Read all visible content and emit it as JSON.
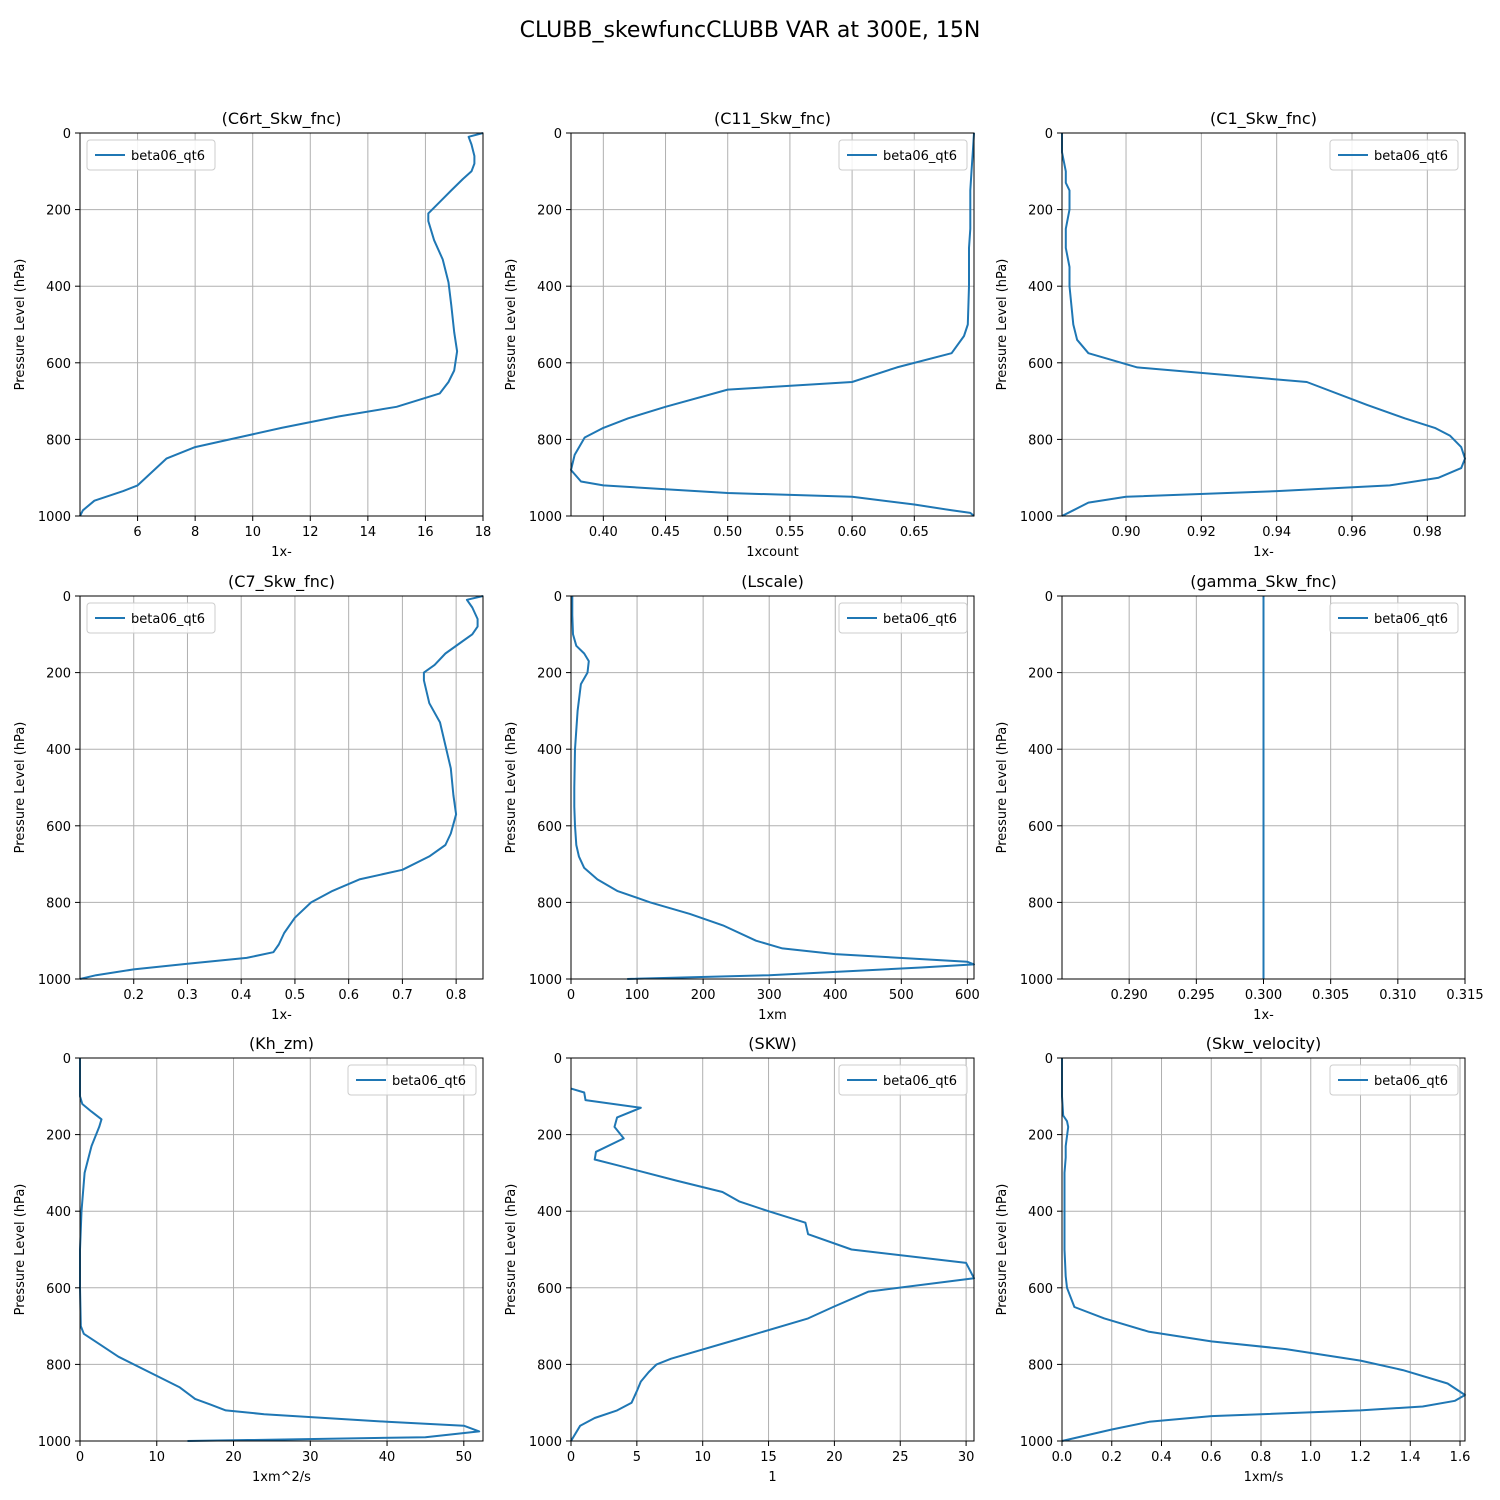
{
  "figure": {
    "title": "CLUBB_skewfuncCLUBB VAR at 300E, 15N",
    "ylabel": "Pressure Level (hPa)",
    "line_color": "#1f77b4"
  },
  "chart_data": [
    {
      "type": "line",
      "title": "(C6rt_Skw_fnc)",
      "xlabel": "1x-",
      "ylabel": "Pressure Level (hPa)",
      "xlim": [
        4,
        18
      ],
      "ylim": [
        1000,
        0
      ],
      "grid": true,
      "legend_loc": "upper-left",
      "xticks": [
        6,
        8,
        10,
        12,
        14,
        16,
        18
      ],
      "xtick_labels": [
        "6",
        "8",
        "10",
        "12",
        "14",
        "16",
        "18"
      ],
      "yticks": [
        0,
        200,
        400,
        600,
        800,
        1000
      ],
      "ytick_labels": [
        "0",
        "200",
        "400",
        "600",
        "800",
        "1000"
      ],
      "series": [
        {
          "name": "beta06_qt6",
          "x": [
            18.0,
            17.5,
            17.6,
            17.7,
            17.7,
            17.6,
            17.3,
            16.9,
            16.5,
            16.1,
            16.1,
            16.3,
            16.6,
            16.8,
            16.9,
            17.0,
            17.1,
            17.0,
            16.8,
            16.5,
            15.0,
            13.0,
            11.0,
            9.5,
            8.0,
            7.0,
            6.5,
            6.0,
            5.5,
            4.5,
            4.1,
            4.0
          ],
          "y": [
            0,
            10,
            30,
            60,
            80,
            100,
            120,
            150,
            180,
            210,
            230,
            280,
            330,
            390,
            450,
            520,
            570,
            620,
            650,
            680,
            715,
            740,
            770,
            795,
            820,
            850,
            885,
            920,
            935,
            960,
            985,
            1000
          ]
        }
      ]
    },
    {
      "type": "line",
      "title": "(C11_Skw_fnc)",
      "xlabel": "1xcount",
      "ylabel": "Pressure Level (hPa)",
      "xlim": [
        0.374,
        0.698
      ],
      "ylim": [
        1000,
        0
      ],
      "grid": true,
      "legend_loc": "upper-right",
      "xticks": [
        0.4,
        0.45,
        0.5,
        0.55,
        0.6,
        0.65
      ],
      "xtick_labels": [
        "0.40",
        "0.45",
        "0.50",
        "0.55",
        "0.60",
        "0.65"
      ],
      "yticks": [
        0,
        200,
        400,
        600,
        800,
        1000
      ],
      "ytick_labels": [
        "0",
        "200",
        "400",
        "600",
        "800",
        "1000"
      ],
      "series": [
        {
          "name": "beta06_qt6",
          "x": [
            0.698,
            0.697,
            0.696,
            0.695,
            0.695,
            0.695,
            0.694,
            0.694,
            0.693,
            0.69,
            0.68,
            0.636,
            0.6,
            0.5,
            0.45,
            0.42,
            0.4,
            0.385,
            0.377,
            0.374,
            0.382,
            0.4,
            0.45,
            0.5,
            0.6,
            0.65,
            0.68,
            0.695,
            0.698
          ],
          "y": [
            0,
            50,
            100,
            150,
            200,
            250,
            300,
            400,
            500,
            530,
            575,
            612,
            650,
            670,
            715,
            745,
            770,
            795,
            840,
            880,
            910,
            920,
            930,
            940,
            950,
            970,
            985,
            992,
            1000
          ]
        }
      ]
    },
    {
      "type": "line",
      "title": "(C1_Skw_fnc)",
      "xlabel": "1x-",
      "ylabel": "Pressure Level (hPa)",
      "xlim": [
        0.883,
        0.99
      ],
      "ylim": [
        1000,
        0
      ],
      "grid": true,
      "legend_loc": "upper-right",
      "xticks": [
        0.9,
        0.92,
        0.94,
        0.96,
        0.98
      ],
      "xtick_labels": [
        "0.90",
        "0.92",
        "0.94",
        "0.96",
        "0.98"
      ],
      "yticks": [
        0,
        200,
        400,
        600,
        800,
        1000
      ],
      "ytick_labels": [
        "0",
        "200",
        "400",
        "600",
        "800",
        "1000"
      ],
      "series": [
        {
          "name": "beta06_qt6",
          "x": [
            0.883,
            0.883,
            0.884,
            0.884,
            0.885,
            0.885,
            0.884,
            0.884,
            0.885,
            0.885,
            0.886,
            0.887,
            0.89,
            0.903,
            0.948,
            0.964,
            0.974,
            0.982,
            0.986,
            0.989,
            0.99,
            0.989,
            0.983,
            0.97,
            0.94,
            0.9,
            0.89,
            0.886,
            0.883
          ],
          "y": [
            0,
            50,
            100,
            130,
            150,
            200,
            250,
            300,
            350,
            400,
            500,
            540,
            575,
            612,
            650,
            710,
            745,
            770,
            790,
            820,
            850,
            875,
            900,
            920,
            935,
            950,
            965,
            985,
            1000
          ]
        }
      ]
    },
    {
      "type": "line",
      "title": "(C7_Skw_fnc)",
      "xlabel": "1x-",
      "ylabel": "Pressure Level (hPa)",
      "xlim": [
        0.1,
        0.85
      ],
      "ylim": [
        1000,
        0
      ],
      "grid": true,
      "legend_loc": "upper-left",
      "xticks": [
        0.2,
        0.3,
        0.4,
        0.5,
        0.6,
        0.7,
        0.8
      ],
      "xtick_labels": [
        "0.2",
        "0.3",
        "0.4",
        "0.5",
        "0.6",
        "0.7",
        "0.8"
      ],
      "yticks": [
        0,
        200,
        400,
        600,
        800,
        1000
      ],
      "ytick_labels": [
        "0",
        "200",
        "400",
        "600",
        "800",
        "1000"
      ],
      "series": [
        {
          "name": "beta06_qt6",
          "x": [
            0.85,
            0.82,
            0.83,
            0.84,
            0.84,
            0.83,
            0.81,
            0.78,
            0.76,
            0.74,
            0.74,
            0.75,
            0.77,
            0.78,
            0.79,
            0.795,
            0.8,
            0.79,
            0.78,
            0.75,
            0.7,
            0.62,
            0.57,
            0.53,
            0.5,
            0.48,
            0.47,
            0.46,
            0.41,
            0.3,
            0.2,
            0.13,
            0.1
          ],
          "y": [
            0,
            10,
            30,
            60,
            80,
            100,
            120,
            150,
            180,
            200,
            220,
            280,
            330,
            390,
            450,
            520,
            570,
            620,
            650,
            680,
            715,
            740,
            770,
            800,
            840,
            880,
            910,
            930,
            945,
            960,
            975,
            990,
            1000
          ]
        }
      ]
    },
    {
      "type": "line",
      "title": "(Lscale)",
      "xlabel": "1xm",
      "ylabel": "Pressure Level (hPa)",
      "xlim": [
        0,
        610
      ],
      "ylim": [
        1000,
        0
      ],
      "grid": true,
      "legend_loc": "upper-right",
      "xticks": [
        0,
        100,
        200,
        300,
        400,
        500,
        600
      ],
      "xtick_labels": [
        "0",
        "100",
        "200",
        "300",
        "400",
        "500",
        "600"
      ],
      "yticks": [
        0,
        200,
        400,
        600,
        800,
        1000
      ],
      "ytick_labels": [
        "0",
        "200",
        "400",
        "600",
        "800",
        "1000"
      ],
      "series": [
        {
          "name": "beta06_qt6",
          "x": [
            2,
            2,
            3,
            8,
            20,
            27,
            25,
            15,
            10,
            8,
            6,
            5,
            5,
            6,
            8,
            12,
            20,
            40,
            70,
            120,
            180,
            230,
            280,
            320,
            400,
            600,
            610,
            530,
            300,
            85
          ],
          "y": [
            0,
            50,
            100,
            130,
            150,
            170,
            200,
            230,
            300,
            350,
            400,
            500,
            550,
            600,
            650,
            680,
            710,
            740,
            770,
            800,
            830,
            860,
            900,
            920,
            935,
            955,
            962,
            970,
            990,
            1000
          ]
        }
      ]
    },
    {
      "type": "line",
      "title": "(gamma_Skw_fnc)",
      "xlabel": "1x-",
      "ylabel": "Pressure Level (hPa)",
      "xlim": [
        0.285,
        0.315
      ],
      "ylim": [
        1000,
        0
      ],
      "grid": true,
      "legend_loc": "upper-right",
      "xticks": [
        0.29,
        0.295,
        0.3,
        0.305,
        0.31,
        0.315
      ],
      "xtick_labels": [
        "0.290",
        "0.295",
        "0.300",
        "0.305",
        "0.310",
        "0.315"
      ],
      "yticks": [
        0,
        200,
        400,
        600,
        800,
        1000
      ],
      "ytick_labels": [
        "0",
        "200",
        "400",
        "600",
        "800",
        "1000"
      ],
      "series": [
        {
          "name": "beta06_qt6",
          "x": [
            0.3,
            0.3
          ],
          "y": [
            0,
            1000
          ]
        }
      ]
    },
    {
      "type": "line",
      "title": "(Kh_zm)",
      "xlabel": "1xm^2/s",
      "ylabel": "Pressure Level (hPa)",
      "xlim": [
        0,
        52.5
      ],
      "ylim": [
        1000,
        0
      ],
      "grid": true,
      "legend_loc": "upper-right",
      "xticks": [
        0,
        10,
        20,
        30,
        40,
        50
      ],
      "xtick_labels": [
        "0",
        "10",
        "20",
        "30",
        "40",
        "50"
      ],
      "yticks": [
        0,
        200,
        400,
        600,
        800,
        1000
      ],
      "ytick_labels": [
        "0",
        "200",
        "400",
        "600",
        "800",
        "1000"
      ],
      "series": [
        {
          "name": "beta06_qt6",
          "x": [
            0,
            0,
            0.3,
            1.5,
            2.8,
            2.5,
            1.5,
            0.6,
            0.2,
            0,
            0,
            0.1,
            0.5,
            2,
            5,
            10,
            13,
            15,
            17,
            19,
            24,
            40,
            50,
            52,
            45,
            14
          ],
          "y": [
            0,
            100,
            120,
            140,
            160,
            180,
            230,
            300,
            400,
            500,
            600,
            700,
            720,
            740,
            780,
            830,
            860,
            890,
            905,
            920,
            930,
            950,
            960,
            975,
            990,
            1000
          ]
        }
      ]
    },
    {
      "type": "line",
      "title": "(SKW)",
      "xlabel": "1",
      "ylabel": "Pressure Level (hPa)",
      "xlim": [
        0,
        30.6
      ],
      "ylim": [
        1000,
        0
      ],
      "grid": true,
      "legend_loc": "upper-right",
      "xticks": [
        0,
        5,
        10,
        15,
        20,
        25,
        30
      ],
      "xtick_labels": [
        "0",
        "5",
        "10",
        "15",
        "20",
        "25",
        "30"
      ],
      "yticks": [
        0,
        200,
        400,
        600,
        800,
        1000
      ],
      "ytick_labels": [
        "0",
        "200",
        "400",
        "600",
        "800",
        "1000"
      ],
      "series": [
        {
          "name": "beta06_qt6",
          "x": [
            0,
            1.0,
            1.1,
            5.3,
            3.5,
            3.3,
            4.0,
            1.9,
            1.8,
            3.5,
            8,
            11.5,
            12.8,
            15,
            17.8,
            18,
            21.3,
            30.0,
            30.6,
            22.6,
            19.9,
            18,
            12.6,
            7.6,
            6.5,
            5.9,
            5.3,
            5.0,
            4.6,
            3.5,
            1.8,
            0.7,
            0
          ],
          "y": [
            80,
            90,
            110,
            130,
            155,
            180,
            210,
            245,
            265,
            280,
            320,
            350,
            375,
            400,
            430,
            460,
            500,
            535,
            575,
            610,
            650,
            680,
            735,
            785,
            800,
            820,
            845,
            870,
            900,
            920,
            940,
            960,
            1000
          ]
        }
      ]
    },
    {
      "type": "line",
      "title": "(Skw_velocity)",
      "xlabel": "1xm/s",
      "ylabel": "Pressure Level (hPa)",
      "xlim": [
        0,
        1.62
      ],
      "ylim": [
        1000,
        0
      ],
      "grid": true,
      "legend_loc": "upper-right",
      "xticks": [
        0.0,
        0.2,
        0.4,
        0.6,
        0.8,
        1.0,
        1.2,
        1.4,
        1.6
      ],
      "xtick_labels": [
        "0.0",
        "0.2",
        "0.4",
        "0.6",
        "0.8",
        "1.0",
        "1.2",
        "1.4",
        "1.6"
      ],
      "yticks": [
        0,
        200,
        400,
        600,
        800,
        1000
      ],
      "ytick_labels": [
        "0",
        "200",
        "400",
        "600",
        "800",
        "1000"
      ],
      "series": [
        {
          "name": "beta06_qt6",
          "x": [
            0,
            0,
            0.005,
            0.02,
            0.025,
            0.015,
            0.015,
            0.01,
            0.01,
            0.01,
            0.015,
            0.02,
            0.05,
            0.17,
            0.35,
            0.6,
            0.9,
            1.2,
            1.37,
            1.55,
            1.62,
            1.58,
            1.45,
            1.2,
            0.6,
            0.35,
            0.2,
            0
          ],
          "y": [
            0,
            100,
            150,
            165,
            180,
            230,
            260,
            300,
            350,
            500,
            570,
            600,
            650,
            680,
            715,
            740,
            760,
            790,
            815,
            850,
            880,
            895,
            910,
            920,
            935,
            950,
            970,
            1000
          ]
        }
      ]
    }
  ]
}
